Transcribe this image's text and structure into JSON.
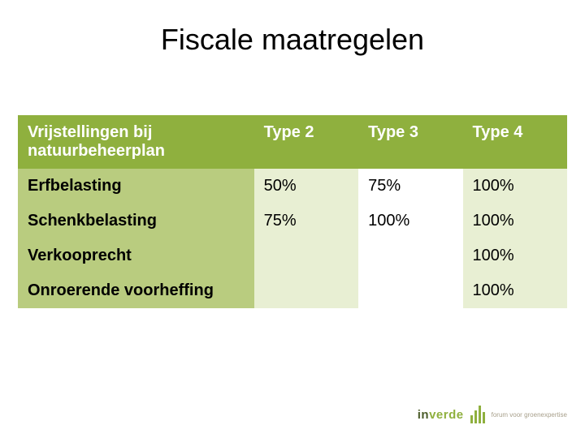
{
  "title": "Fiscale maatregelen",
  "colors": {
    "header_bg": "#8fb03e",
    "header_text": "#ffffff",
    "label_bg": "#b9cc7f",
    "label_text": "#000000",
    "cell_text": "#000000",
    "stripe_bg": "#e8efd3",
    "plain_bg": "#ffffff"
  },
  "table": {
    "header": [
      "Vrijstellingen bij natuurbeheerplan",
      "Type 2",
      "Type 3",
      "Type 4"
    ],
    "rows": [
      {
        "label": "Erfbelasting",
        "values": [
          "50%",
          "75%",
          "100%"
        ]
      },
      {
        "label": "Schenkbelasting",
        "values": [
          "75%",
          "100%",
          "100%"
        ]
      },
      {
        "label": "Verkooprecht",
        "values": [
          "",
          "",
          "100%"
        ]
      },
      {
        "label": "Onroerende voorheffing",
        "values": [
          "",
          "",
          "100%"
        ]
      }
    ]
  },
  "footer": {
    "logo_in": "in",
    "logo_verde": "verde",
    "tagline": "forum voor groenexpertise"
  }
}
